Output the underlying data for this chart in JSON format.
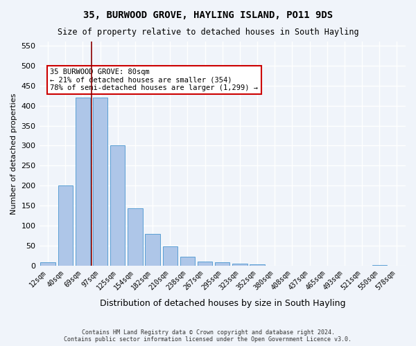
{
  "title": "35, BURWOOD GROVE, HAYLING ISLAND, PO11 9DS",
  "subtitle": "Size of property relative to detached houses in South Hayling",
  "xlabel": "Distribution of detached houses by size in South Hayling",
  "ylabel": "Number of detached properties",
  "footnote": "Contains HM Land Registry data © Crown copyright and database right 2024.\nContains public sector information licensed under the Open Government Licence v3.0.",
  "bar_labels": [
    "12sqm",
    "40sqm",
    "69sqm",
    "97sqm",
    "125sqm",
    "154sqm",
    "182sqm",
    "210sqm",
    "238sqm",
    "267sqm",
    "295sqm",
    "323sqm",
    "352sqm",
    "380sqm",
    "408sqm",
    "437sqm",
    "465sqm",
    "493sqm",
    "521sqm",
    "550sqm",
    "578sqm"
  ],
  "bar_values": [
    8,
    200,
    420,
    420,
    300,
    143,
    80,
    48,
    23,
    11,
    8,
    5,
    4,
    0,
    0,
    0,
    0,
    0,
    0,
    2,
    0
  ],
  "bar_color": "#aec6e8",
  "bar_edge_color": "#5a9fd4",
  "property_line_x": 80,
  "property_sqm": 80,
  "annotation_title": "35 BURWOOD GROVE: 80sqm",
  "annotation_line1": "← 21% of detached houses are smaller (354)",
  "annotation_line2": "78% of semi-detached houses are larger (1,299) →",
  "vline_color": "#8b0000",
  "annotation_box_color": "#cc0000",
  "ylim": [
    0,
    560
  ],
  "yticks": [
    0,
    50,
    100,
    150,
    200,
    250,
    300,
    350,
    400,
    450,
    500,
    550
  ],
  "background_color": "#f0f4fa",
  "plot_bg_color": "#f0f4fa",
  "grid_color": "#ffffff"
}
